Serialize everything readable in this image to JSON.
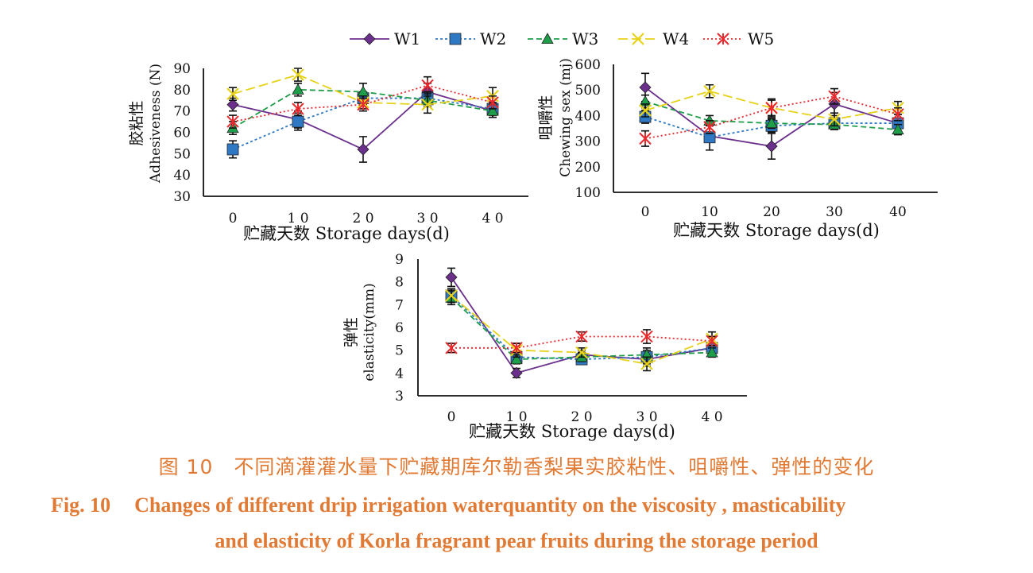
{
  "legend": [
    "W1",
    "W2",
    "W3",
    "W4",
    "W5"
  ],
  "colors": {
    "W1": "#6b2f8c",
    "W2": "#2f78c4",
    "W3": "#1f9e4a",
    "W4": "#e6d21a",
    "W5": "#e8292d"
  },
  "chart_data": [
    {
      "type": "line",
      "ylabel_cn": "胶粘性",
      "ylabel": "Adhesiveness (N)",
      "xlabel": "贮藏天数 Storage days(d)",
      "x": [
        0,
        10,
        20,
        30,
        40
      ],
      "x_tick_labels": [
        "0",
        "1 0",
        "2 0",
        "3 0",
        "4 0"
      ],
      "ylim": [
        30,
        90
      ],
      "yticks": [
        30,
        40,
        50,
        60,
        70,
        80,
        90
      ],
      "series": [
        {
          "name": "W1",
          "values": [
            73,
            66,
            52,
            79,
            70
          ],
          "err": [
            3,
            4,
            6,
            4,
            3
          ]
        },
        {
          "name": "W2",
          "values": [
            52,
            65,
            76,
            76,
            71
          ],
          "err": [
            4,
            4,
            3,
            3,
            3
          ]
        },
        {
          "name": "W3",
          "values": [
            62,
            80,
            79,
            75,
            70
          ],
          "err": [
            3,
            3,
            4,
            3,
            3
          ]
        },
        {
          "name": "W4",
          "values": [
            78,
            87,
            74,
            73,
            77
          ],
          "err": [
            3,
            3,
            3,
            4,
            4
          ]
        },
        {
          "name": "W5",
          "values": [
            65,
            71,
            73,
            82,
            74
          ],
          "err": [
            3,
            3,
            3,
            4,
            3
          ]
        }
      ]
    },
    {
      "type": "line",
      "ylabel_cn": "咀嚼性",
      "ylabel": "Chewing sex (mj)",
      "xlabel": "贮藏天数 Storage days(d)",
      "x": [
        0,
        10,
        20,
        30,
        40
      ],
      "x_tick_labels": [
        "0",
        "10",
        "20",
        "30",
        "40"
      ],
      "ylim": [
        100,
        600
      ],
      "yticks": [
        100,
        200,
        300,
        400,
        500,
        600
      ],
      "series": [
        {
          "name": "W1",
          "values": [
            510,
            320,
            280,
            445,
            370
          ],
          "err": [
            55,
            55,
            50,
            45,
            35
          ]
        },
        {
          "name": "W2",
          "values": [
            395,
            315,
            360,
            370,
            370
          ],
          "err": [
            25,
            20,
            25,
            20,
            20
          ]
        },
        {
          "name": "W3",
          "values": [
            455,
            380,
            370,
            365,
            345
          ],
          "err": [
            25,
            20,
            20,
            20,
            20
          ]
        },
        {
          "name": "W4",
          "values": [
            420,
            495,
            430,
            385,
            430
          ],
          "err": [
            25,
            25,
            30,
            25,
            25
          ]
        },
        {
          "name": "W5",
          "values": [
            310,
            355,
            430,
            475,
            405
          ],
          "err": [
            30,
            25,
            35,
            30,
            25
          ]
        }
      ]
    },
    {
      "type": "line",
      "ylabel_cn": "弹性",
      "ylabel": "elasticity(mm)",
      "xlabel": "贮藏天数 Storage days(d)",
      "x": [
        0,
        10,
        20,
        30,
        40
      ],
      "x_tick_labels": [
        "0",
        "1 0",
        "2 0",
        "3 0",
        "4 0"
      ],
      "ylim": [
        3,
        9
      ],
      "yticks": [
        3,
        4,
        5,
        6,
        7,
        8,
        9
      ],
      "series": [
        {
          "name": "W1",
          "values": [
            8.2,
            4.0,
            4.8,
            4.6,
            5.1
          ],
          "err": [
            0.4,
            0.2,
            0.2,
            0.3,
            0.2
          ]
        },
        {
          "name": "W2",
          "values": [
            7.4,
            4.7,
            4.6,
            4.7,
            5.1
          ],
          "err": [
            0.3,
            0.2,
            0.2,
            0.3,
            0.2
          ]
        },
        {
          "name": "W3",
          "values": [
            7.3,
            4.6,
            4.7,
            4.8,
            4.9
          ],
          "err": [
            0.3,
            0.2,
            0.2,
            0.3,
            0.2
          ]
        },
        {
          "name": "W4",
          "values": [
            7.4,
            5.0,
            4.9,
            4.4,
            5.5
          ],
          "err": [
            0.3,
            0.3,
            0.2,
            0.3,
            0.3
          ]
        },
        {
          "name": "W5",
          "values": [
            5.1,
            5.1,
            5.6,
            5.6,
            5.4
          ],
          "err": [
            0.2,
            0.2,
            0.2,
            0.3,
            0.2
          ]
        }
      ]
    }
  ],
  "caption": {
    "cn": "图 10　不同滴灌灌水量下贮藏期库尔勒香梨果实胶粘性、咀嚼性、弹性的变化",
    "en_label": "Fig. 10",
    "en_line1": "Changes of different drip irrigation waterquantity on the viscosity , masticability",
    "en_line2": "and elasticity of Korla fragrant pear fruits during the storage period"
  }
}
